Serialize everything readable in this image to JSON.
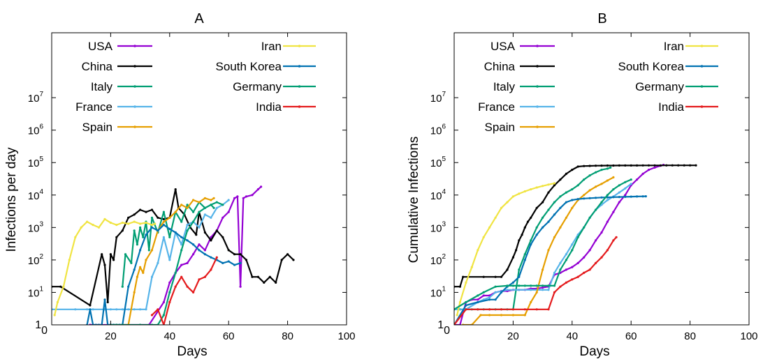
{
  "chart_data": [
    {
      "type": "line",
      "panel_label": "A",
      "xlabel": "Days",
      "ylabel": "Infections per day",
      "xlim": [
        0,
        100
      ],
      "x_ticks": [
        0,
        20,
        40,
        60,
        80,
        100
      ],
      "y_scale": "log",
      "ylim": [
        1,
        1000000000.0
      ],
      "y_ticks": [
        {
          "value": 1,
          "base": "1",
          "exp": ""
        },
        {
          "value": 10,
          "base": "10",
          "exp": "1"
        },
        {
          "value": 100,
          "base": "10",
          "exp": "2"
        },
        {
          "value": 1000,
          "base": "10",
          "exp": "3"
        },
        {
          "value": 10000,
          "base": "10",
          "exp": "4"
        },
        {
          "value": 100000,
          "base": "10",
          "exp": "5"
        },
        {
          "value": 1000000,
          "base": "10",
          "exp": "6"
        },
        {
          "value": 10000000,
          "base": "10",
          "exp": "7"
        }
      ],
      "legend_position": "top",
      "series": [
        {
          "name": "USA",
          "color": "#9400d3",
          "x": [
            13,
            20,
            33,
            38,
            40,
            42,
            44,
            46,
            48,
            50,
            52,
            54,
            56,
            58,
            60,
            62,
            63,
            64,
            65,
            66,
            68,
            70,
            71
          ],
          "y": [
            1,
            1,
            1,
            5,
            20,
            40,
            70,
            80,
            150,
            300,
            200,
            500,
            800,
            2000,
            3000,
            8000,
            9000,
            15,
            8000,
            9000,
            10000,
            15000,
            18000
          ]
        },
        {
          "name": "China",
          "color": "#000000",
          "x": [
            0,
            3,
            13,
            17,
            18,
            19,
            20,
            21,
            22,
            24,
            26,
            28,
            30,
            32,
            34,
            36,
            38,
            40,
            42,
            43,
            45,
            47,
            49,
            50,
            52,
            54,
            56,
            58,
            60,
            62,
            64,
            66,
            68,
            70,
            72,
            74,
            76,
            78,
            80,
            82
          ],
          "y": [
            15,
            15,
            4,
            150,
            70,
            5,
            150,
            100,
            500,
            800,
            2000,
            2500,
            3500,
            3000,
            3500,
            2000,
            1800,
            2000,
            15000,
            4000,
            2500,
            1000,
            600,
            3000,
            700,
            400,
            800,
            500,
            200,
            150,
            150,
            100,
            30,
            30,
            20,
            30,
            20,
            100,
            150,
            100
          ]
        },
        {
          "name": "Italy",
          "color": "#009e73",
          "x": [
            24,
            25,
            27,
            28,
            29,
            30,
            31,
            32,
            33,
            34,
            36,
            38,
            40,
            42,
            44,
            46,
            48,
            50,
            52,
            54,
            55
          ],
          "y": [
            15,
            150,
            80,
            800,
            300,
            1000,
            500,
            1500,
            200,
            2000,
            700,
            3000,
            500,
            3000,
            1500,
            5000,
            3000,
            6000,
            4000,
            5000,
            4000
          ]
        },
        {
          "name": "France",
          "color": "#56b4e9",
          "x": [
            0,
            8,
            12,
            14,
            18,
            20,
            22,
            24,
            26,
            28,
            30,
            32,
            34,
            36,
            38,
            40,
            42,
            44,
            46,
            48,
            50,
            52,
            54,
            56,
            58,
            60
          ],
          "y": [
            3,
            3,
            3,
            3,
            3,
            3,
            3,
            3,
            3,
            3,
            3,
            3,
            30,
            80,
            500,
            100,
            700,
            300,
            1200,
            1500,
            1000,
            2500,
            2000,
            4000,
            5000,
            7000
          ]
        },
        {
          "name": "Spain",
          "color": "#e69f00",
          "x": [
            24,
            26,
            28,
            29,
            30,
            31,
            32,
            34,
            36,
            38,
            40,
            42,
            44,
            46,
            48,
            50,
            52,
            54,
            55
          ],
          "y": [
            1,
            1,
            10,
            30,
            60,
            40,
            100,
            200,
            800,
            1500,
            2000,
            3000,
            5000,
            4000,
            7000,
            6000,
            8000,
            7000,
            8000
          ]
        },
        {
          "name": "Iran",
          "color": "#f0e442",
          "x": [
            1,
            2,
            4,
            6,
            8,
            10,
            12,
            14,
            16,
            18,
            20,
            22,
            24,
            26,
            28,
            30,
            32,
            34,
            35
          ],
          "y": [
            2,
            5,
            15,
            100,
            500,
            1000,
            1500,
            1200,
            1000,
            1800,
            1400,
            1200,
            1400,
            1300,
            1500,
            1300,
            1400,
            1200,
            1300
          ]
        },
        {
          "name": "South Korea",
          "color": "#0072b2",
          "x": [
            12,
            13,
            14,
            15,
            16,
            17,
            18,
            19,
            20,
            21,
            22,
            23,
            24,
            26,
            28,
            30,
            32,
            34,
            36,
            38,
            40,
            42,
            44,
            46,
            48,
            50,
            52,
            54,
            56,
            58,
            60,
            62,
            64
          ],
          "y": [
            1,
            3,
            1,
            1,
            1,
            1,
            6,
            1,
            1,
            1,
            1,
            1,
            1,
            15,
            50,
            200,
            600,
            1000,
            800,
            1200,
            900,
            700,
            500,
            400,
            300,
            200,
            150,
            120,
            100,
            80,
            90,
            70,
            80
          ]
        },
        {
          "name": "Germany",
          "color": "#009e73",
          "x": [
            20,
            22,
            24,
            30,
            34,
            36,
            38,
            40,
            42,
            44,
            46,
            48,
            50,
            52,
            54,
            56,
            58
          ],
          "y": [
            1,
            1,
            1,
            1,
            1,
            1,
            2,
            10,
            40,
            200,
            800,
            1500,
            3000,
            4000,
            5000,
            6000,
            5000
          ]
        },
        {
          "name": "India",
          "color": "#e41a1c",
          "x": [
            34,
            36,
            38,
            40,
            42,
            44,
            46,
            48,
            50,
            52,
            54,
            56
          ],
          "y": [
            2,
            3,
            1,
            5,
            15,
            30,
            15,
            10,
            25,
            30,
            50,
            120
          ]
        }
      ]
    },
    {
      "type": "line",
      "panel_label": "B",
      "xlabel": "Days",
      "ylabel": "Cumulative Infections",
      "xlim": [
        0,
        100
      ],
      "x_ticks": [
        0,
        20,
        40,
        60,
        80,
        100
      ],
      "y_scale": "log",
      "ylim": [
        1,
        1000000000.0
      ],
      "y_ticks": [
        {
          "value": 1,
          "base": "1",
          "exp": ""
        },
        {
          "value": 10,
          "base": "10",
          "exp": "1"
        },
        {
          "value": 100,
          "base": "10",
          "exp": "2"
        },
        {
          "value": 1000,
          "base": "10",
          "exp": "3"
        },
        {
          "value": 10000,
          "base": "10",
          "exp": "4"
        },
        {
          "value": 100000,
          "base": "10",
          "exp": "5"
        },
        {
          "value": 1000000,
          "base": "10",
          "exp": "6"
        },
        {
          "value": 10000000,
          "base": "10",
          "exp": "7"
        }
      ],
      "legend_position": "top",
      "series": [
        {
          "name": "USA",
          "color": "#9400d3",
          "x": [
            0,
            2,
            4,
            6,
            8,
            10,
            12,
            14,
            16,
            18,
            20,
            22,
            24,
            26,
            28,
            30,
            32,
            34,
            36,
            38,
            40,
            42,
            44,
            46,
            48,
            50,
            52,
            54,
            56,
            58,
            60,
            62,
            64,
            66,
            68,
            70,
            71
          ],
          "y": [
            1,
            1,
            5,
            6,
            6,
            8,
            8,
            10,
            11,
            11,
            12,
            12,
            12,
            13,
            13,
            14,
            15,
            35,
            40,
            50,
            60,
            80,
            120,
            200,
            400,
            700,
            1500,
            3000,
            6000,
            10000,
            20000,
            30000,
            45000,
            60000,
            70000,
            80000,
            85000
          ]
        },
        {
          "name": "China",
          "color": "#000000",
          "x": [
            0,
            2,
            3,
            10,
            14,
            16,
            18,
            20,
            21,
            22,
            23,
            24,
            25,
            26,
            28,
            30,
            32,
            34,
            36,
            38,
            40,
            42,
            44,
            46,
            48,
            50,
            52,
            54,
            56,
            58,
            60,
            62,
            64,
            66,
            68,
            70,
            72,
            74,
            76,
            78,
            80,
            82
          ],
          "y": [
            15,
            15,
            30,
            30,
            30,
            30,
            50,
            120,
            200,
            400,
            600,
            1000,
            1500,
            2000,
            4000,
            6000,
            12000,
            20000,
            30000,
            45000,
            60000,
            75000,
            78000,
            79000,
            80000,
            80500,
            81000,
            81000,
            81200,
            81300,
            81400,
            81500,
            81600,
            81700,
            81800,
            81900,
            82000,
            82000,
            82000,
            82100,
            82100,
            82200
          ]
        },
        {
          "name": "Italy",
          "color": "#009e73",
          "x": [
            0,
            2,
            4,
            6,
            8,
            10,
            12,
            14,
            16,
            18,
            20,
            22,
            24,
            26,
            28,
            30,
            32,
            34,
            36,
            38,
            40,
            42,
            44,
            46,
            48,
            50,
            52,
            53
          ],
          "y": [
            3,
            3,
            3,
            3,
            3,
            3,
            3,
            3,
            3,
            3,
            3,
            50,
            150,
            400,
            1000,
            2000,
            3500,
            6000,
            9000,
            12000,
            15000,
            20000,
            30000,
            40000,
            50000,
            60000,
            65000,
            70000
          ]
        },
        {
          "name": "France",
          "color": "#56b4e9",
          "x": [
            0,
            4,
            8,
            10,
            12,
            14,
            18,
            22,
            26,
            30,
            32,
            34,
            36,
            38,
            40,
            42,
            44,
            46,
            48,
            50,
            52,
            54,
            56,
            58,
            60
          ],
          "y": [
            3,
            3,
            5,
            6,
            7,
            10,
            12,
            12,
            12,
            12,
            12,
            40,
            80,
            150,
            300,
            600,
            1000,
            2000,
            3500,
            5000,
            7000,
            9000,
            12000,
            16000,
            22000
          ]
        },
        {
          "name": "Spain",
          "color": "#e69f00",
          "x": [
            3,
            6,
            9,
            12,
            16,
            20,
            24,
            26,
            28,
            30,
            32,
            34,
            36,
            38,
            40,
            42,
            44,
            46,
            48,
            50,
            52,
            54
          ],
          "y": [
            1,
            1,
            2,
            2,
            2,
            2,
            2,
            5,
            10,
            50,
            200,
            500,
            1000,
            2000,
            4000,
            7000,
            10000,
            14000,
            18000,
            22000,
            28000,
            35000
          ]
        },
        {
          "name": "Iran",
          "color": "#f0e442",
          "x": [
            1,
            2,
            4,
            6,
            8,
            10,
            12,
            14,
            16,
            18,
            20,
            22,
            24,
            26,
            28,
            30,
            32,
            34
          ],
          "y": [
            2,
            5,
            20,
            60,
            200,
            500,
            1000,
            2000,
            4000,
            6000,
            9000,
            11000,
            13000,
            15000,
            17000,
            19000,
            21000,
            23000
          ]
        },
        {
          "name": "South Korea",
          "color": "#0072b2",
          "x": [
            0,
            4,
            8,
            12,
            14,
            16,
            18,
            20,
            22,
            24,
            26,
            28,
            30,
            32,
            34,
            36,
            38,
            40,
            42,
            44,
            46,
            48,
            50,
            52,
            54,
            56,
            58,
            60,
            62,
            64,
            65
          ],
          "y": [
            1,
            4,
            5,
            6,
            6,
            10,
            15,
            20,
            30,
            100,
            300,
            600,
            1000,
            1500,
            2500,
            4000,
            6000,
            7000,
            7500,
            7800,
            8000,
            8200,
            8400,
            8500,
            8600,
            8700,
            8800,
            8900,
            9000,
            9100,
            9150
          ]
        },
        {
          "name": "Germany",
          "color": "#009e73",
          "x": [
            0,
            4,
            8,
            10,
            14,
            18,
            20,
            22,
            24,
            26,
            28,
            30,
            32,
            34,
            36,
            38,
            40,
            42,
            44,
            46,
            48,
            50,
            52,
            54,
            56,
            58,
            60
          ],
          "y": [
            3,
            5,
            8,
            10,
            15,
            16,
            16,
            16,
            16,
            16,
            16,
            16,
            16,
            16,
            50,
            100,
            200,
            500,
            1000,
            2000,
            3500,
            6000,
            10000,
            15000,
            20000,
            25000,
            30000
          ]
        },
        {
          "name": "India",
          "color": "#e41a1c",
          "x": [
            0,
            4,
            8,
            12,
            16,
            20,
            24,
            28,
            32,
            34,
            36,
            38,
            40,
            42,
            44,
            46,
            48,
            50,
            52,
            54,
            55
          ],
          "y": [
            1,
            3,
            3,
            3,
            3,
            3,
            3,
            3,
            3,
            10,
            15,
            20,
            25,
            30,
            40,
            50,
            80,
            120,
            200,
            400,
            500
          ]
        }
      ]
    }
  ]
}
